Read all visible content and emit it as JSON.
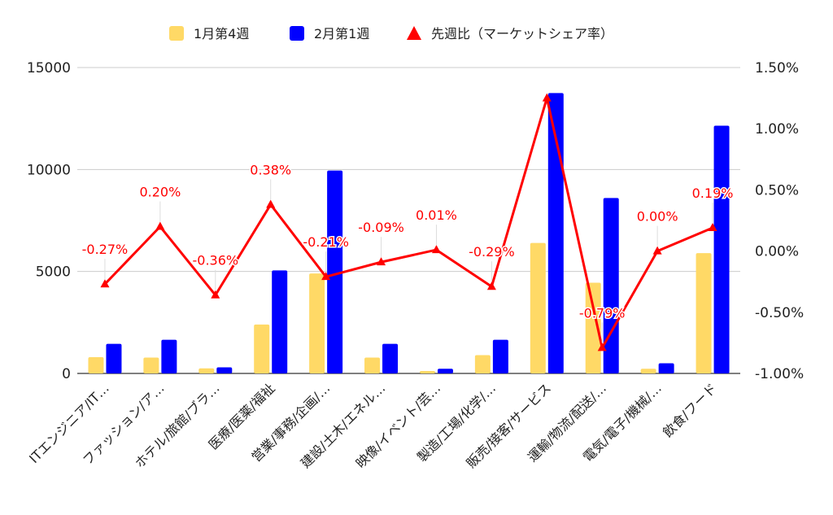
{
  "chart_data": {
    "type": "bar",
    "combo": "bar-and-line-dual-axis",
    "categories": [
      "ITエンジニア/IT…",
      "ファッション/ア…",
      "ホテル/旅館/ブラ…",
      "医療/医薬/福祉",
      "営業/事務/企画/…",
      "建設/土木/エネル…",
      "映像/イベント/芸…",
      "製造/工場/化学/…",
      "販売/接客/サービス",
      "運輸/物流/配送/…",
      "電気/電子/機械/…",
      "飲食/フード"
    ],
    "series": [
      {
        "name": "1月第4週",
        "type": "bar",
        "axis": "left",
        "color": "#FFD966",
        "values": [
          800,
          780,
          250,
          2400,
          4900,
          780,
          120,
          900,
          6400,
          4450,
          230,
          5900
        ]
      },
      {
        "name": "2月第1週",
        "type": "bar",
        "axis": "left",
        "color": "#0000FF",
        "values": [
          1450,
          1650,
          300,
          5050,
          9950,
          1450,
          230,
          1650,
          13750,
          8600,
          500,
          12150
        ]
      },
      {
        "name": "先週比（マーケットシェア率）",
        "type": "line",
        "axis": "right",
        "color": "#FF0000",
        "values": [
          -0.27,
          0.2,
          -0.36,
          0.38,
          -0.21,
          -0.09,
          0.01,
          -0.29,
          1.25,
          -0.79,
          0.0,
          0.19
        ],
        "labels": [
          "-0.27%",
          "0.20%",
          "-0.36%",
          "0.38%",
          "-0.21%",
          "-0.09%",
          "0.01%",
          "-0.29%",
          "",
          "-0.79%",
          "0.00%",
          "0.19%"
        ]
      }
    ],
    "y_left": {
      "ylim": [
        0,
        15000
      ],
      "ticks": [
        "0",
        "5000",
        "10000",
        "15000"
      ],
      "tick_values": [
        0,
        5000,
        10000,
        15000
      ]
    },
    "y_right": {
      "ylim": [
        -1.0,
        1.5
      ],
      "ticks": [
        "-1.00%",
        "-0.50%",
        "0.00%",
        "0.50%",
        "1.00%",
        "1.50%"
      ],
      "tick_values": [
        -1.0,
        -0.5,
        0.0,
        0.5,
        1.0,
        1.5
      ]
    },
    "grid": true,
    "legend_position": "top-center"
  }
}
